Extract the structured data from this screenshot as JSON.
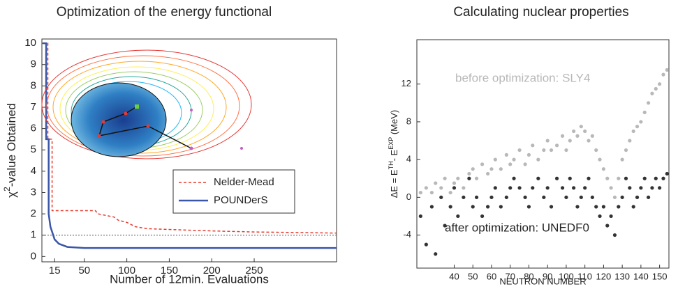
{
  "chart_data": [
    {
      "type": "line",
      "title": "Optimization of the energy functional",
      "xlabel": "Number of 12min. Evaluations",
      "ylabel": [
        "χ",
        "2",
        "-value Obtained"
      ],
      "xlim": [
        0,
        347
      ],
      "ylim": [
        -0.25,
        10.2
      ],
      "xticks": [
        15,
        50,
        100,
        150,
        200,
        250
      ],
      "yticks": [
        0,
        1,
        2,
        3,
        4,
        5,
        6,
        7,
        8,
        9,
        10
      ],
      "hline": 1,
      "legend": "lower right",
      "series": [
        {
          "name": "Nelder-Mead",
          "color": "#e8382a",
          "dash": true,
          "x": [
            1,
            7,
            7,
            12,
            12,
            63,
            66,
            85,
            90,
            100,
            110,
            125,
            200,
            250,
            347
          ],
          "values": [
            10,
            10,
            5.5,
            5.5,
            2.15,
            2.15,
            2,
            1.85,
            1.7,
            1.6,
            1.4,
            1.3,
            1.2,
            1.15,
            1.1
          ]
        },
        {
          "name": "POUNDerS",
          "color": "#3a56a8",
          "dash": false,
          "x": [
            1,
            5,
            5,
            8,
            8,
            10,
            15,
            20,
            30,
            50,
            347
          ],
          "values": [
            10,
            10,
            5.5,
            5.5,
            2,
            1.4,
            0.8,
            0.6,
            0.45,
            0.4,
            0.4
          ]
        }
      ]
    },
    {
      "type": "scatter",
      "title": "Calculating nuclear properties",
      "xlabel": "NEUTRON NUMBER",
      "ylabel": [
        "ΔE = E",
        "TH",
        "- E",
        "EXP",
        " (MeV)"
      ],
      "xlim": [
        20,
        155
      ],
      "ylim": [
        -7.5,
        16.7
      ],
      "xticks": [
        40,
        50,
        60,
        70,
        80,
        90,
        100,
        110,
        120,
        130,
        140,
        150
      ],
      "yticks": [
        -4,
        0,
        4,
        8,
        12
      ],
      "annotations": [
        "before optimization: SLY4",
        "after optimization: UNEDF0"
      ],
      "series": [
        {
          "name": "SLY4",
          "color": "#b8b8b8",
          "x": [
            22,
            25,
            28,
            30,
            33,
            35,
            38,
            40,
            42,
            45,
            48,
            50,
            52,
            55,
            58,
            60,
            62,
            65,
            68,
            70,
            72,
            75,
            78,
            80,
            82,
            85,
            88,
            90,
            92,
            95,
            98,
            100,
            102,
            104,
            106,
            108,
            110,
            112,
            114,
            116,
            118,
            120,
            122,
            124,
            126,
            128,
            130,
            132,
            134,
            136,
            138,
            140,
            142,
            144,
            146,
            148,
            150,
            152,
            154
          ],
          "values": [
            0.5,
            1,
            0.5,
            1.5,
            1,
            2,
            0.5,
            1.5,
            2,
            1,
            2.5,
            3,
            2,
            3.5,
            2.5,
            3,
            4,
            3,
            4.5,
            3.5,
            4,
            5,
            3.5,
            4.5,
            5.5,
            4,
            5,
            6,
            5,
            5.5,
            6.5,
            5,
            6,
            7,
            6.5,
            7.5,
            7,
            6,
            6.5,
            5,
            4,
            3,
            2,
            1,
            0,
            2,
            4,
            5,
            6,
            7,
            7.5,
            8,
            9,
            10,
            11,
            11.5,
            12,
            13,
            13.5
          ]
        },
        {
          "name": "UNEDF0",
          "color": "#333333",
          "x": [
            22,
            25,
            28,
            30,
            33,
            35,
            38,
            40,
            42,
            45,
            48,
            50,
            52,
            55,
            58,
            60,
            62,
            65,
            68,
            70,
            72,
            75,
            78,
            80,
            82,
            85,
            88,
            90,
            92,
            95,
            98,
            100,
            102,
            104,
            106,
            108,
            110,
            112,
            114,
            116,
            118,
            120,
            122,
            124,
            126,
            128,
            130,
            132,
            134,
            136,
            138,
            140,
            142,
            144,
            146,
            148,
            150,
            152,
            154
          ],
          "values": [
            -2,
            -5,
            -1,
            -6,
            0,
            -3,
            -1,
            1,
            -2,
            0,
            2,
            -1,
            0,
            -2,
            -1,
            0,
            1,
            -1,
            0,
            1,
            2,
            1,
            0,
            -1,
            1,
            2,
            0,
            1,
            -1,
            2,
            1,
            0,
            2,
            1,
            -1,
            0,
            1,
            2,
            0,
            -1,
            -2,
            -1,
            -3,
            -2,
            -4,
            -1,
            0,
            2,
            1,
            -1,
            0,
            1,
            2,
            0,
            1,
            2,
            1,
            2,
            2.5
          ]
        }
      ]
    }
  ]
}
